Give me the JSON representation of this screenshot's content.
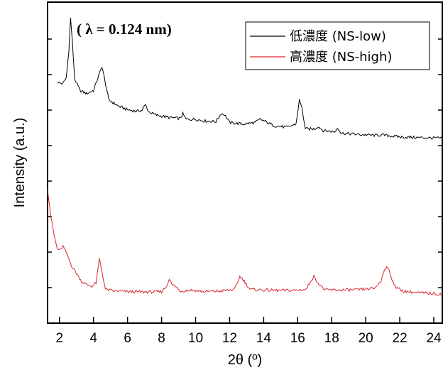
{
  "chart_data": {
    "type": "line",
    "xlabel": "2θ (º)",
    "ylabel": "Intensity (a.u.)",
    "xlim": [
      1.3,
      24.5
    ],
    "ylim": [
      0,
      100
    ],
    "x_ticks": [
      "2",
      "4",
      "6",
      "8",
      "10",
      "12",
      "14",
      "16",
      "18",
      "20",
      "22",
      "24"
    ],
    "y_tick_labels_shown": false,
    "annotation": "( λ = 0.124 nm)",
    "legend_position": "top-right",
    "series": [
      {
        "name": "低濃度 (NS-low)",
        "color": "#000000",
        "points": [
          [
            1.9,
            75
          ],
          [
            2.2,
            74.6
          ],
          [
            2.4,
            76.5
          ],
          [
            2.55,
            85
          ],
          [
            2.65,
            95
          ],
          [
            2.75,
            88
          ],
          [
            2.9,
            76
          ],
          [
            3.2,
            72.5
          ],
          [
            3.6,
            71.5
          ],
          [
            4.0,
            72.5
          ],
          [
            4.3,
            77
          ],
          [
            4.5,
            80
          ],
          [
            4.65,
            76
          ],
          [
            4.9,
            69.5
          ],
          [
            5.5,
            67.5
          ],
          [
            6.0,
            66.5
          ],
          [
            6.5,
            66
          ],
          [
            6.85,
            66.3
          ],
          [
            7.05,
            68
          ],
          [
            7.25,
            65.8
          ],
          [
            7.7,
            64.8
          ],
          [
            8.5,
            64
          ],
          [
            9.1,
            63.8
          ],
          [
            9.25,
            65.2
          ],
          [
            9.45,
            63.5
          ],
          [
            10.0,
            63.5
          ],
          [
            10.5,
            63
          ],
          [
            11.2,
            62.8
          ],
          [
            11.5,
            65.3
          ],
          [
            11.7,
            65
          ],
          [
            12.0,
            62.5
          ],
          [
            12.8,
            62
          ],
          [
            13.5,
            62.5
          ],
          [
            13.8,
            63.5
          ],
          [
            14.1,
            62.8
          ],
          [
            14.6,
            61.5
          ],
          [
            15.4,
            61
          ],
          [
            15.9,
            62
          ],
          [
            16.1,
            69.5
          ],
          [
            16.25,
            67
          ],
          [
            16.45,
            60.5
          ],
          [
            17.0,
            60.5
          ],
          [
            17.2,
            61.3
          ],
          [
            17.5,
            60
          ],
          [
            18.2,
            59.6
          ],
          [
            18.35,
            61
          ],
          [
            18.55,
            59.2
          ],
          [
            19.5,
            58.8
          ],
          [
            20.5,
            58.5
          ],
          [
            21.0,
            58.6
          ],
          [
            22.0,
            58
          ],
          [
            23.0,
            57.8
          ],
          [
            24.0,
            57.7
          ],
          [
            24.5,
            57.6
          ]
        ]
      },
      {
        "name": "高濃度 (NS-high)",
        "color": "#d9262b",
        "points": [
          [
            1.3,
            42
          ],
          [
            1.5,
            33
          ],
          [
            1.7,
            27
          ],
          [
            1.85,
            23.5
          ],
          [
            2.0,
            22.5
          ],
          [
            2.2,
            24
          ],
          [
            2.4,
            22
          ],
          [
            2.7,
            18
          ],
          [
            3.0,
            15.5
          ],
          [
            3.3,
            13
          ],
          [
            3.6,
            12
          ],
          [
            3.9,
            11.5
          ],
          [
            4.15,
            12.5
          ],
          [
            4.35,
            20
          ],
          [
            4.5,
            16
          ],
          [
            4.7,
            10.5
          ],
          [
            5.2,
            10
          ],
          [
            6.0,
            9.8
          ],
          [
            7.0,
            9.7
          ],
          [
            8.0,
            9.8
          ],
          [
            8.3,
            11.5
          ],
          [
            8.45,
            14
          ],
          [
            8.6,
            12
          ],
          [
            8.8,
            11.5
          ],
          [
            9.1,
            10
          ],
          [
            9.8,
            10.3
          ],
          [
            10.5,
            9.8
          ],
          [
            11.5,
            10
          ],
          [
            12.3,
            10.5
          ],
          [
            12.6,
            14.5
          ],
          [
            12.8,
            13.5
          ],
          [
            13.2,
            10.5
          ],
          [
            14.0,
            10.3
          ],
          [
            15.0,
            10.2
          ],
          [
            15.8,
            10.2
          ],
          [
            16.5,
            10.5
          ],
          [
            16.8,
            13.5
          ],
          [
            16.95,
            14.5
          ],
          [
            17.2,
            12.5
          ],
          [
            17.6,
            10.3
          ],
          [
            18.5,
            10.3
          ],
          [
            19.5,
            10.4
          ],
          [
            20.5,
            10.8
          ],
          [
            20.9,
            13
          ],
          [
            21.1,
            17
          ],
          [
            21.3,
            17.5
          ],
          [
            21.5,
            14
          ],
          [
            21.8,
            11
          ],
          [
            22.2,
            10
          ],
          [
            23.0,
            9.5
          ],
          [
            24.0,
            9.2
          ],
          [
            24.5,
            9
          ]
        ]
      }
    ]
  }
}
